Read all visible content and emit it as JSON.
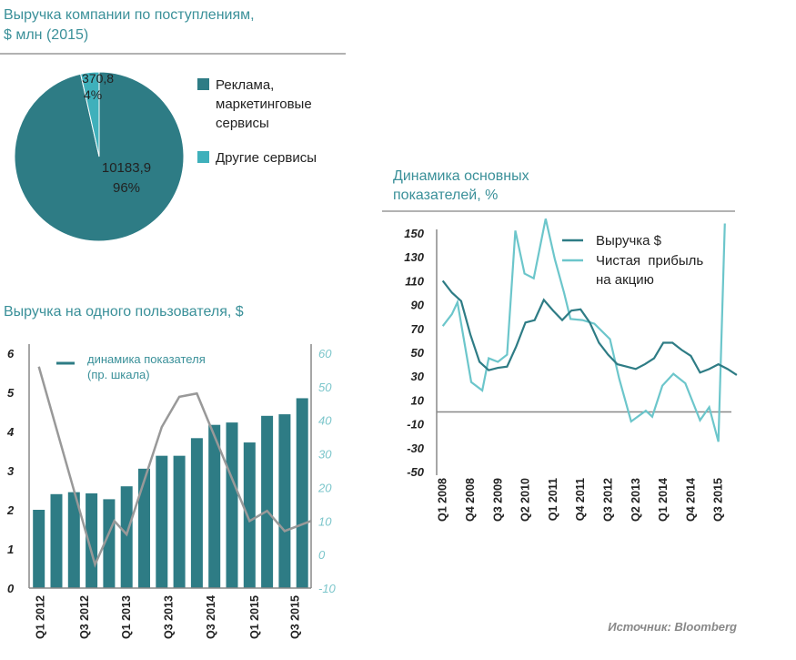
{
  "colors": {
    "dark": "#2e7c85",
    "light": "#3fb0bb",
    "line_light": "#6cc6cb",
    "gray": "#999999",
    "title": "#3a9099"
  },
  "source": "Источник: Bloomberg",
  "chart_data": [
    {
      "type": "pie",
      "title_lines": [
        "Выручка компании по поступлениям,",
        "$ млн (2015)"
      ],
      "slices": [
        {
          "name_lines": [
            "Реклама,",
            "маркетинговые",
            "сервисы"
          ],
          "value": 10183.9,
          "value_label": "10183,9",
          "pct_label": "96%"
        },
        {
          "name_lines": [
            "Другие сервисы"
          ],
          "value": 370.8,
          "value_label": "370,8",
          "pct_label": "4%"
        }
      ],
      "legend": "right"
    },
    {
      "type": "bar",
      "title": "Выручка на одного пользователя, $",
      "values": [
        2.0,
        2.4,
        2.45,
        2.42,
        2.27,
        2.6,
        3.05,
        3.38,
        3.38,
        3.83,
        4.17,
        4.23,
        3.72,
        4.4,
        4.44,
        4.85
      ],
      "ylim": [
        0,
        6
      ],
      "yticks": [
        "0",
        "1",
        "2",
        "3",
        "4",
        "5",
        "6"
      ],
      "y2lim": [
        -10,
        60
      ],
      "y2ticks": [
        "-10",
        "0",
        "10",
        "20",
        "30",
        "40",
        "50",
        "60"
      ],
      "xlabels": [
        {
          "label": "Q1 2012",
          "at": 0.1
        },
        {
          "label": "Q3 2012",
          "at": 2.6
        },
        {
          "label": "Q1 2013",
          "at": 5
        },
        {
          "label": "Q3 2013",
          "at": 7.4
        },
        {
          "label": "Q3 2014",
          "at": 9.8
        },
        {
          "label": "Q1 2015",
          "at": 12.3
        },
        {
          "label": "Q3 2015",
          "at": 14.6
        }
      ],
      "line_series": {
        "name_lines": [
          "динамика показателя",
          "(пр. шкала)"
        ],
        "points": [
          [
            0,
            56
          ],
          [
            3.2,
            -3
          ],
          [
            4.3,
            10
          ],
          [
            5,
            6
          ],
          [
            7,
            38
          ],
          [
            8,
            47
          ],
          [
            9,
            48
          ],
          [
            12,
            10
          ],
          [
            13,
            13
          ],
          [
            14,
            7
          ],
          [
            15.5,
            10
          ]
        ]
      }
    },
    {
      "type": "line",
      "title_lines": [
        "Динамика основных",
        "показателей, %"
      ],
      "ylim": [
        -50,
        150
      ],
      "yticks": [
        "-50",
        "-30",
        "-10",
        "10",
        "30",
        "50",
        "70",
        "90",
        "110",
        "130",
        "150"
      ],
      "xlabels": [
        {
          "label": "Q1 2008",
          "at": 0
        },
        {
          "label": "Q4 2008",
          "at": 3
        },
        {
          "label": "Q3 2009",
          "at": 6
        },
        {
          "label": "Q2 2010",
          "at": 9
        },
        {
          "label": "Q1 2011",
          "at": 12
        },
        {
          "label": "Q4 2011",
          "at": 15
        },
        {
          "label": "Q3 2012",
          "at": 18
        },
        {
          "label": "Q2 2013",
          "at": 21
        },
        {
          "label": "Q1 2014",
          "at": 24
        },
        {
          "label": "Q4 2014",
          "at": 27
        },
        {
          "label": "Q3 2015",
          "at": 30
        }
      ],
      "series": [
        {
          "name_lines": [
            "Выручка $"
          ],
          "values": [
            110,
            100,
            93,
            65,
            42,
            35,
            37,
            38,
            55,
            75,
            77,
            94,
            85,
            77,
            85,
            86,
            75,
            58,
            48,
            40,
            38,
            36,
            40,
            45,
            58,
            58,
            52,
            47,
            33,
            36,
            40,
            36,
            31
          ]
        },
        {
          "name_lines": [
            "Чистая  прибыль",
            "на акцию"
          ],
          "points": [
            [
              0,
              72
            ],
            [
              1,
              82
            ],
            [
              1.6,
              92
            ],
            [
              3.1,
              25
            ],
            [
              4.3,
              18
            ],
            [
              5,
              45
            ],
            [
              6,
              42
            ],
            [
              7,
              48
            ],
            [
              7.9,
              152
            ],
            [
              8.9,
              116
            ],
            [
              9.9,
              112
            ],
            [
              11.2,
              162
            ],
            [
              12.2,
              128
            ],
            [
              13.2,
              100
            ],
            [
              13.9,
              78
            ],
            [
              15.2,
              77
            ],
            [
              16.5,
              74
            ],
            [
              18.2,
              61
            ],
            [
              19.2,
              28
            ],
            [
              20.5,
              -8
            ],
            [
              22.1,
              1
            ],
            [
              22.8,
              -4
            ],
            [
              23.9,
              22
            ],
            [
              25.1,
              32
            ],
            [
              26.4,
              24
            ],
            [
              28,
              -7
            ],
            [
              29,
              4
            ],
            [
              30,
              -25
            ],
            [
              30.7,
              158
            ]
          ]
        }
      ],
      "legend": "top-right"
    }
  ]
}
